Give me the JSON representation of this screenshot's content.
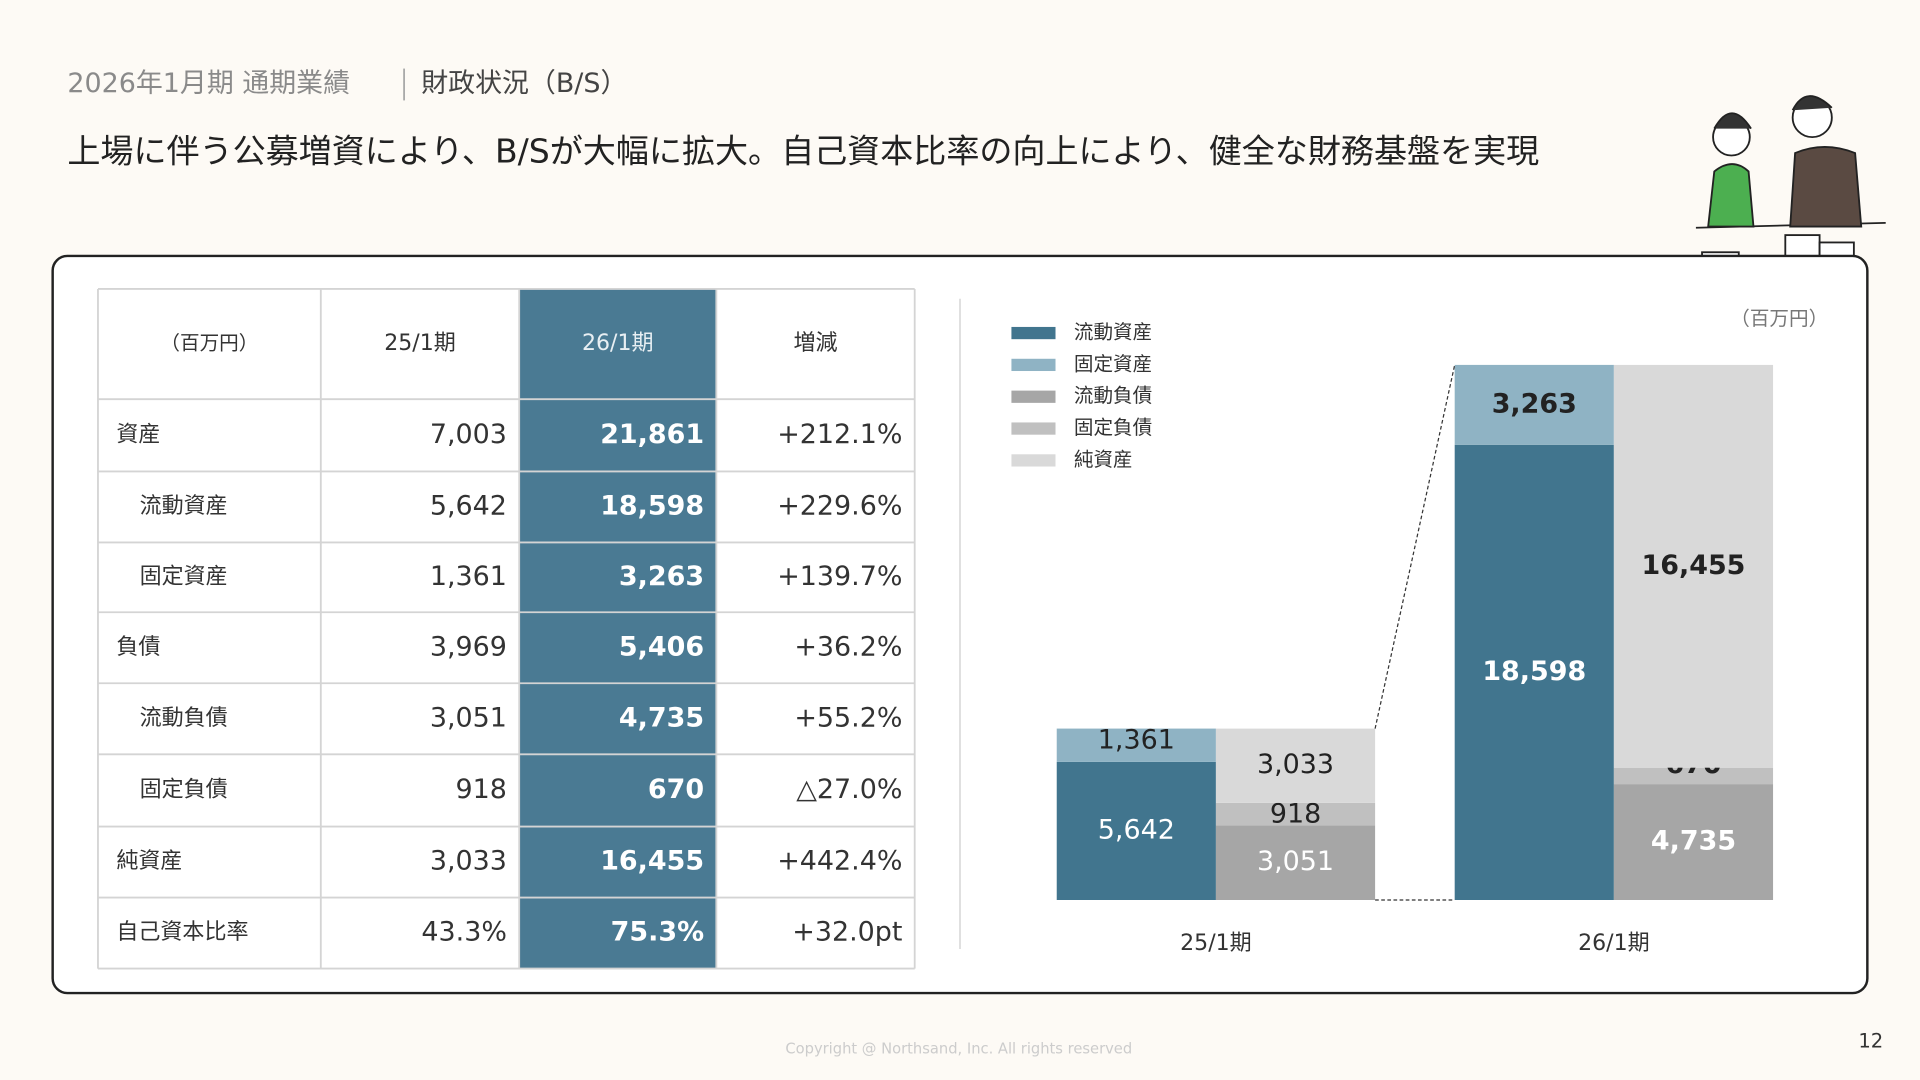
{
  "header": {
    "section": "2026年1月期 通期業績",
    "title": "財政状況（B/S）",
    "headline": "上場に伴う公募増資により、B/Sが大幅に拡大。自己資本比率の向上により、健全な財務基盤を実現"
  },
  "table": {
    "header": [
      "（百万円）",
      "25/1期",
      "26/1期",
      "増減"
    ],
    "rows": [
      [
        "資産",
        "7,003",
        "21,861",
        "+212.1%"
      ],
      [
        "流動資産",
        "5,642",
        "18,598",
        "+229.6%"
      ],
      [
        "固定資産",
        "1,361",
        "3,263",
        "+139.7%"
      ],
      [
        "負債",
        "3,969",
        "5,406",
        "+36.2%"
      ],
      [
        "流動負債",
        "3,051",
        "4,735",
        "+55.2%"
      ],
      [
        "固定負債",
        "918",
        "670",
        "△27.0%"
      ],
      [
        "純資産",
        "3,033",
        "16,455",
        "+442.4%"
      ],
      [
        "自己資本比率",
        "43.3%",
        "75.3%",
        "+32.0pt"
      ]
    ]
  },
  "chart_data": {
    "type": "stacked_bar",
    "unit_label": "（百万円）",
    "categories": [
      "25/1期",
      "26/1期"
    ],
    "series": [
      {
        "name": "流動資産",
        "color": "#41758e",
        "stack": 0,
        "values": [
          5642,
          18598
        ],
        "value_labels": [
          "5,642",
          "18,598"
        ]
      },
      {
        "name": "固定資産",
        "color": "#8fb3c4",
        "stack": 0,
        "values": [
          1361,
          3263
        ],
        "value_labels": [
          "1,361",
          "3,263"
        ]
      },
      {
        "name": "流動負債",
        "color": "#a6a6a6",
        "stack": 1,
        "values": [
          3051,
          4735
        ],
        "value_labels": [
          "3,051",
          "4,735"
        ]
      },
      {
        "name": "固定負債",
        "color": "#c0c0c0",
        "stack": 1,
        "values": [
          918,
          670
        ]
      },
      {
        "name": "純資産",
        "color": "#d9d9d9",
        "stack": 1,
        "values": [
          3033,
          16455
        ],
        "value_labels": [
          "3,033",
          "16,455"
        ]
      }
    ],
    "legend": "upper left"
  },
  "footer": {
    "copyright": "Copyright @ Northsand, Inc. All rights reserved",
    "page": "12"
  }
}
